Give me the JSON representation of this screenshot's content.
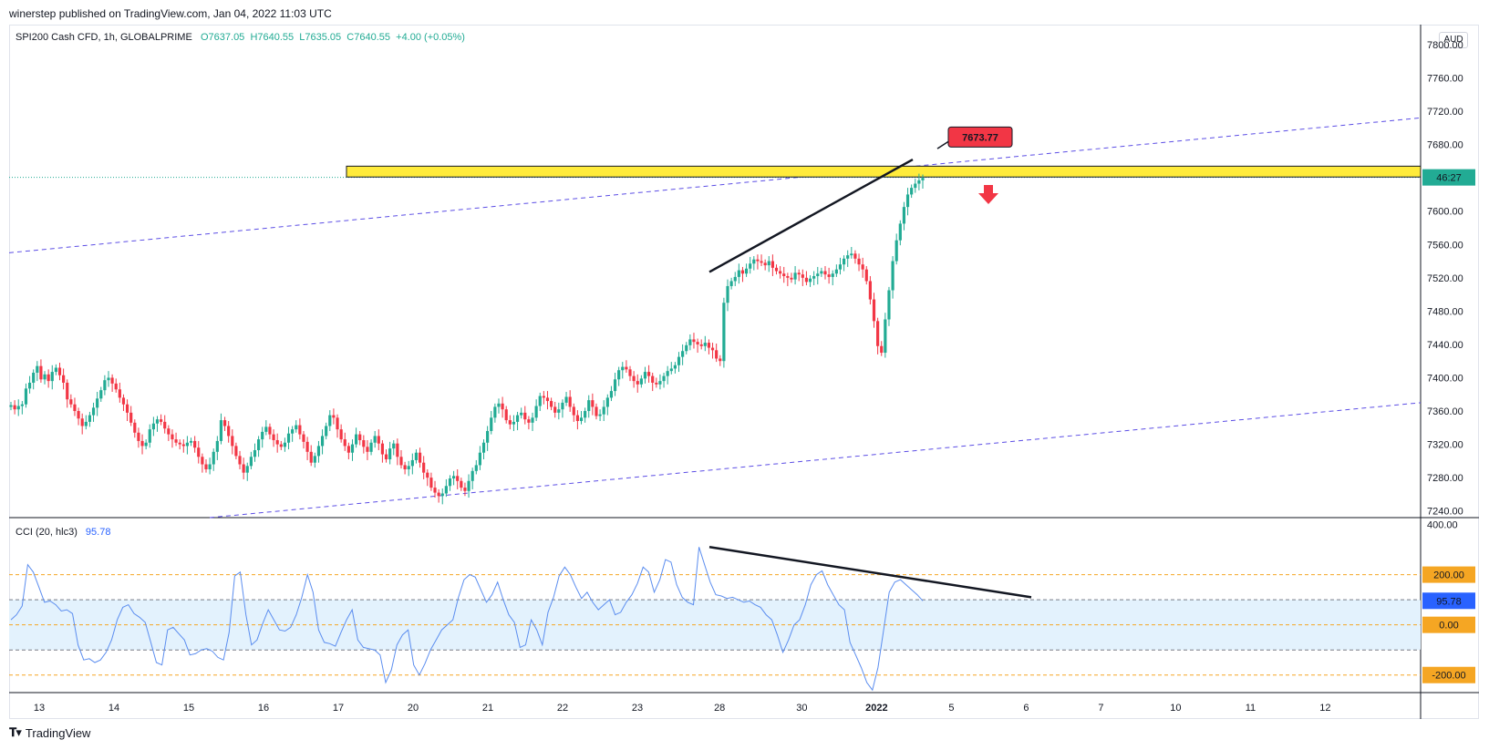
{
  "header": {
    "published": "winerstep published on TradingView.com, Jan 04, 2022 11:03 UTC"
  },
  "legend": {
    "symbol": "SPI200 Cash CFD, 1h, GLOBALPRIME",
    "o": "O7637.05",
    "h": "H7640.55",
    "l": "L7635.05",
    "c": "C7640.55",
    "chg": "+4.00 (+0.05%)"
  },
  "currency": "AUD",
  "cci_legend": {
    "label": "CCI (20, hlc3)",
    "value": "95.78"
  },
  "footer": {
    "brand": "TradingView"
  },
  "colors": {
    "up": "#22ab94",
    "down": "#f23645",
    "cci_line": "#5b8def",
    "cci_band": "#e3f2fd",
    "level_line": "#f5a623",
    "zone": "#ffeb3b",
    "channel": "#5c4ee5",
    "callout": "#f23645"
  },
  "chart_data": [
    {
      "type": "candlestick",
      "name": "price",
      "yaxis_ticks": [
        "7800.00",
        "7760.00",
        "7720.00",
        "7680.00",
        "7600.00",
        "7560.00",
        "7520.00",
        "7480.00",
        "7440.00",
        "7400.00",
        "7360.00",
        "7320.00",
        "7280.00",
        "7240.00"
      ],
      "ylim": [
        7232,
        7824
      ],
      "xaxis_ticks": [
        {
          "label": "13",
          "day": 0
        },
        {
          "label": "14",
          "day": 1
        },
        {
          "label": "15",
          "day": 2
        },
        {
          "label": "16",
          "day": 3
        },
        {
          "label": "17",
          "day": 4
        },
        {
          "label": "20",
          "day": 5
        },
        {
          "label": "21",
          "day": 6
        },
        {
          "label": "22",
          "day": 7
        },
        {
          "label": "23",
          "day": 8
        },
        {
          "label": "28",
          "day": 9.1
        },
        {
          "label": "30",
          "day": 10.2
        },
        {
          "label": "2022",
          "day": 11.2,
          "bold": true
        },
        {
          "label": "5",
          "day": 12.2
        },
        {
          "label": "6",
          "day": 13.2
        },
        {
          "label": "7",
          "day": 14.2
        },
        {
          "label": "10",
          "day": 15.2
        },
        {
          "label": "11",
          "day": 16.2
        },
        {
          "label": "12",
          "day": 17.2
        }
      ],
      "closes": [
        7367,
        7362,
        7366,
        7368,
        7387,
        7394,
        7406,
        7414,
        7398,
        7404,
        7396,
        7407,
        7412,
        7403,
        7394,
        7374,
        7368,
        7360,
        7351,
        7342,
        7347,
        7355,
        7364,
        7375,
        7385,
        7397,
        7400,
        7393,
        7386,
        7376,
        7368,
        7358,
        7346,
        7334,
        7324,
        7318,
        7322,
        7338,
        7345,
        7350,
        7347,
        7339,
        7332,
        7326,
        7322,
        7320,
        7318,
        7322,
        7324,
        7316,
        7305,
        7296,
        7290,
        7296,
        7311,
        7324,
        7349,
        7342,
        7330,
        7318,
        7306,
        7296,
        7286,
        7294,
        7305,
        7313,
        7326,
        7335,
        7341,
        7332,
        7325,
        7320,
        7317,
        7322,
        7333,
        7338,
        7343,
        7332,
        7323,
        7311,
        7298,
        7306,
        7318,
        7330,
        7342,
        7355,
        7352,
        7338,
        7326,
        7318,
        7310,
        7320,
        7332,
        7325,
        7317,
        7311,
        7322,
        7330,
        7321,
        7308,
        7302,
        7315,
        7321,
        7305,
        7295,
        7290,
        7294,
        7301,
        7310,
        7298,
        7286,
        7280,
        7268,
        7262,
        7258,
        7261,
        7270,
        7279,
        7282,
        7276,
        7268,
        7264,
        7276,
        7288,
        7295,
        7310,
        7322,
        7336,
        7352,
        7365,
        7369,
        7362,
        7349,
        7344,
        7347,
        7355,
        7358,
        7350,
        7346,
        7352,
        7366,
        7378,
        7376,
        7372,
        7365,
        7358,
        7362,
        7370,
        7377,
        7365,
        7355,
        7348,
        7352,
        7360,
        7373,
        7365,
        7354,
        7356,
        7365,
        7376,
        7384,
        7398,
        7409,
        7413,
        7410,
        7402,
        7396,
        7392,
        7399,
        7407,
        7402,
        7394,
        7392,
        7396,
        7402,
        7408,
        7411,
        7415,
        7425,
        7432,
        7439,
        7446,
        7443,
        7440,
        7438,
        7442,
        7436,
        7433,
        7423,
        7420,
        7490,
        7510,
        7516,
        7521,
        7529,
        7525,
        7531,
        7537,
        7542,
        7540,
        7538,
        7535,
        7540,
        7532,
        7528,
        7525,
        7522,
        7520,
        7518,
        7526,
        7524,
        7520,
        7515,
        7519,
        7522,
        7525,
        7528,
        7524,
        7521,
        7525,
        7530,
        7536,
        7543,
        7547,
        7549,
        7543,
        7536,
        7530,
        7516,
        7494,
        7468,
        7438,
        7430,
        7470,
        7505,
        7540,
        7565,
        7585,
        7605,
        7620,
        7628,
        7633,
        7637,
        7640
      ]
    },
    {
      "type": "line",
      "name": "CCI",
      "yaxis_ticks": [
        "400.00",
        "200.00",
        "0.00",
        "-200.00"
      ],
      "ylim": [
        -270,
        420
      ],
      "levels": [
        200,
        100,
        0,
        -100,
        -200
      ],
      "badges": [
        "200.00",
        "95.78",
        "0.00",
        "-200.00"
      ],
      "values": [
        20,
        40,
        75,
        240,
        210,
        150,
        90,
        95,
        80,
        55,
        60,
        45,
        -80,
        -140,
        -135,
        -150,
        -140,
        -110,
        -60,
        20,
        70,
        80,
        45,
        30,
        10,
        -70,
        -150,
        -160,
        -20,
        -10,
        -35,
        -60,
        -120,
        -115,
        -100,
        -95,
        -105,
        -130,
        -140,
        -30,
        195,
        210,
        40,
        -80,
        -60,
        5,
        60,
        20,
        -20,
        -25,
        -10,
        40,
        110,
        200,
        130,
        -20,
        -70,
        -75,
        -85,
        -30,
        20,
        60,
        -60,
        -90,
        -95,
        -100,
        -120,
        -230,
        -180,
        -80,
        -40,
        -20,
        -160,
        -200,
        -155,
        -100,
        -60,
        -20,
        0,
        20,
        110,
        180,
        200,
        190,
        140,
        90,
        120,
        170,
        100,
        40,
        10,
        -90,
        -80,
        20,
        -20,
        -80,
        50,
        110,
        195,
        230,
        200,
        150,
        105,
        130,
        90,
        60,
        80,
        100,
        40,
        50,
        90,
        120,
        165,
        230,
        210,
        130,
        180,
        260,
        250,
        160,
        110,
        90,
        80,
        310,
        240,
        170,
        120,
        115,
        105,
        110,
        100,
        90,
        95,
        80,
        70,
        40,
        20,
        -40,
        -110,
        -60,
        0,
        20,
        80,
        160,
        200,
        215,
        160,
        120,
        80,
        60,
        -70,
        -120,
        -170,
        -230,
        -260,
        -170,
        -20,
        130,
        170,
        180,
        160,
        140,
        120,
        95.78
      ]
    }
  ],
  "annotations": {
    "callout_price": "7673.77",
    "countdown": "46:27"
  }
}
